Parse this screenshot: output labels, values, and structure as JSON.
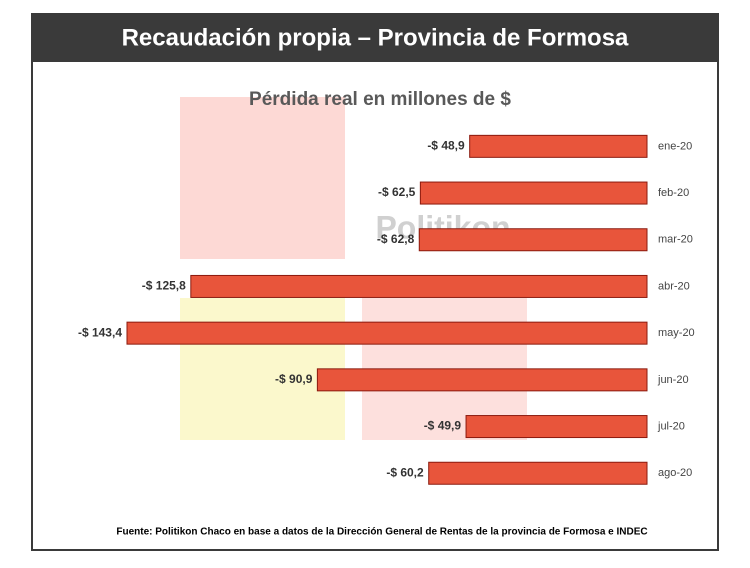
{
  "chart_data": {
    "type": "bar",
    "orientation": "horizontal",
    "title": "Recaudación propia – Provincia de Formosa",
    "subtitle": "Pérdida real en millones de $",
    "watermark": "Politikon",
    "source": "Fuente: Politikon Chaco en base a datos de la Dirección General de Rentas de la provincia de Formosa e INDEC",
    "categories": [
      "ene-20",
      "feb-20",
      "mar-20",
      "abr-20",
      "may-20",
      "jun-20",
      "jul-20",
      "ago-20"
    ],
    "values": [
      -48.9,
      -62.5,
      -62.8,
      -125.8,
      -143.4,
      -90.9,
      -49.9,
      -60.2
    ],
    "value_labels": [
      "-$ 48,9",
      "-$ 62,5",
      "-$ 62,8",
      "-$ 125,8",
      "-$ 143,4",
      "-$ 90,9",
      "-$ 49,9",
      "-$ 60,2"
    ],
    "color": "#e8553b"
  }
}
